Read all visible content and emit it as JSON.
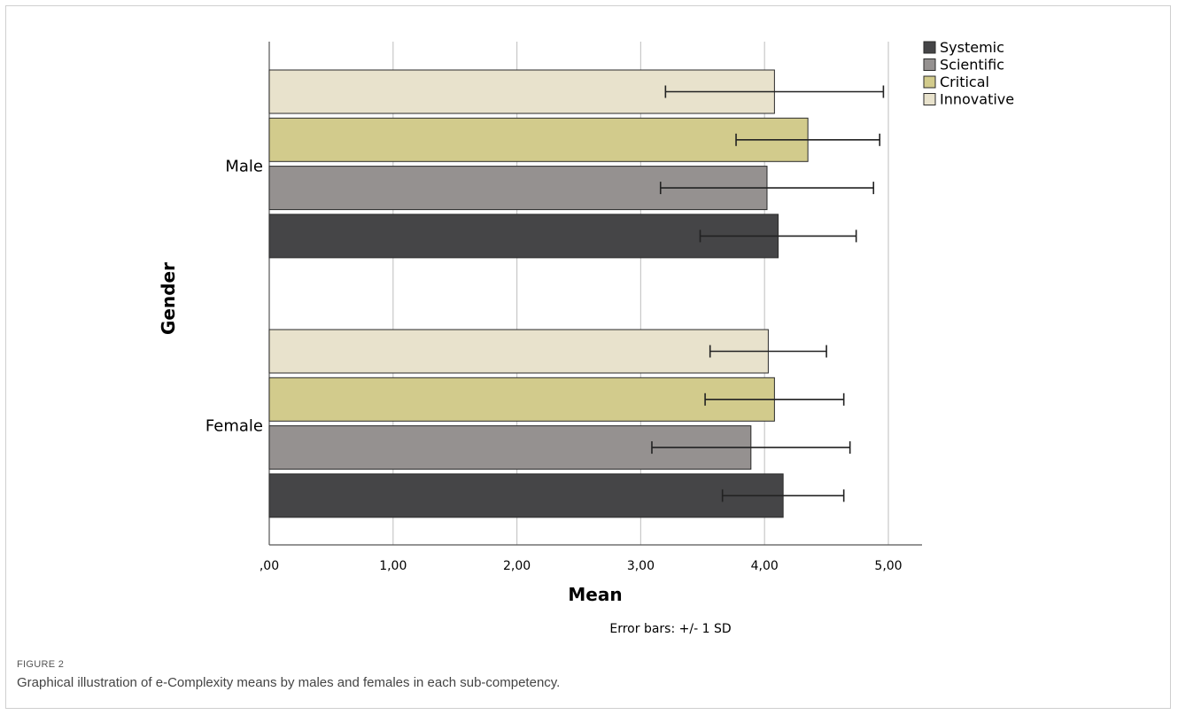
{
  "chart_data": {
    "type": "bar",
    "orientation": "horizontal",
    "categories": [
      "Male",
      "Female"
    ],
    "series": [
      {
        "name": "Innovative",
        "color": "#e8e2cc",
        "values": [
          4.08,
          4.03
        ],
        "sd": [
          0.88,
          0.47
        ]
      },
      {
        "name": "Critical",
        "color": "#d2cb8c",
        "values": [
          4.35,
          4.08
        ],
        "sd": [
          0.58,
          0.56
        ]
      },
      {
        "name": "Scientific",
        "color": "#959190",
        "values": [
          4.02,
          3.89
        ],
        "sd": [
          0.86,
          0.8
        ]
      },
      {
        "name": "Systemic",
        "color": "#454547",
        "values": [
          4.11,
          4.15
        ],
        "sd": [
          0.63,
          0.49
        ]
      }
    ],
    "xlabel": "Mean",
    "ylabel": "Gender",
    "xlim": [
      0,
      5.3
    ],
    "xticks": [
      0,
      1,
      2,
      3,
      4,
      5
    ],
    "xtick_labels": [
      ",00",
      "1,00",
      "2,00",
      "3,00",
      "4,00",
      "5,00"
    ],
    "legend_order": [
      "Systemic",
      "Scientific",
      "Critical",
      "Innovative"
    ],
    "legend_position": "top-right",
    "grid": "vertical",
    "note": "Error bars: +/- 1 SD"
  },
  "caption": {
    "label": "FIGURE 2",
    "text": "Graphical illustration of e-Complexity means by males and females in each sub-competency."
  }
}
